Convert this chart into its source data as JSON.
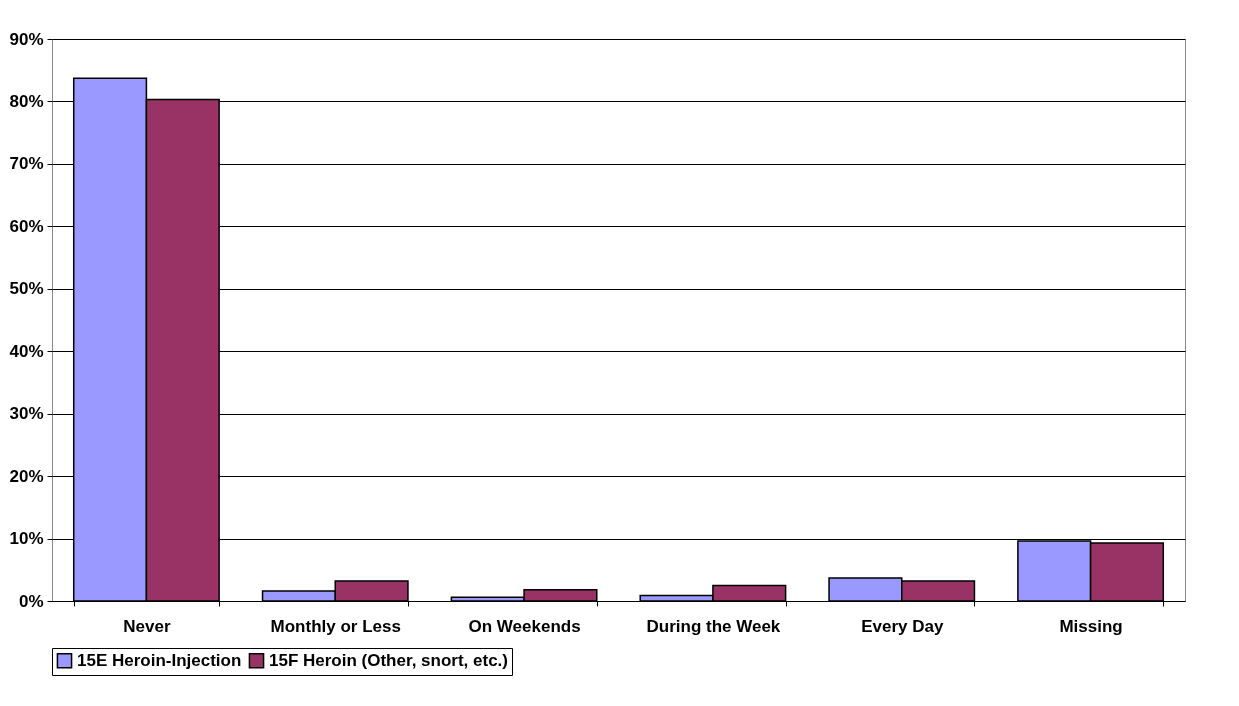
{
  "chart_data": {
    "type": "bar",
    "categories": [
      "Never",
      "Monthly or Less",
      "On Weekends",
      "During the Week",
      "Every Day",
      "Missing"
    ],
    "series": [
      {
        "name": "15E Heroin-Injection",
        "color": "#9999ff",
        "values": [
          83.7,
          1.6,
          0.6,
          0.9,
          3.7,
          9.6
        ]
      },
      {
        "name": "15F Heroin (Other, snort, etc.)",
        "color": "#993366",
        "values": [
          80.3,
          3.2,
          1.8,
          2.5,
          3.2,
          9.3
        ]
      }
    ],
    "ylim": [
      0,
      90
    ],
    "yticks": [
      {
        "value": 0,
        "label": "0%"
      },
      {
        "value": 10,
        "label": "10%"
      },
      {
        "value": 20,
        "label": "20%"
      },
      {
        "value": 30,
        "label": "30%"
      },
      {
        "value": 40,
        "label": "40%"
      },
      {
        "value": 50,
        "label": "50%"
      },
      {
        "value": 60,
        "label": "60%"
      },
      {
        "value": 70,
        "label": "70%"
      },
      {
        "value": 80,
        "label": "80%"
      },
      {
        "value": 90,
        "label": "90%"
      }
    ],
    "grid": "y",
    "legend": "bottom"
  }
}
